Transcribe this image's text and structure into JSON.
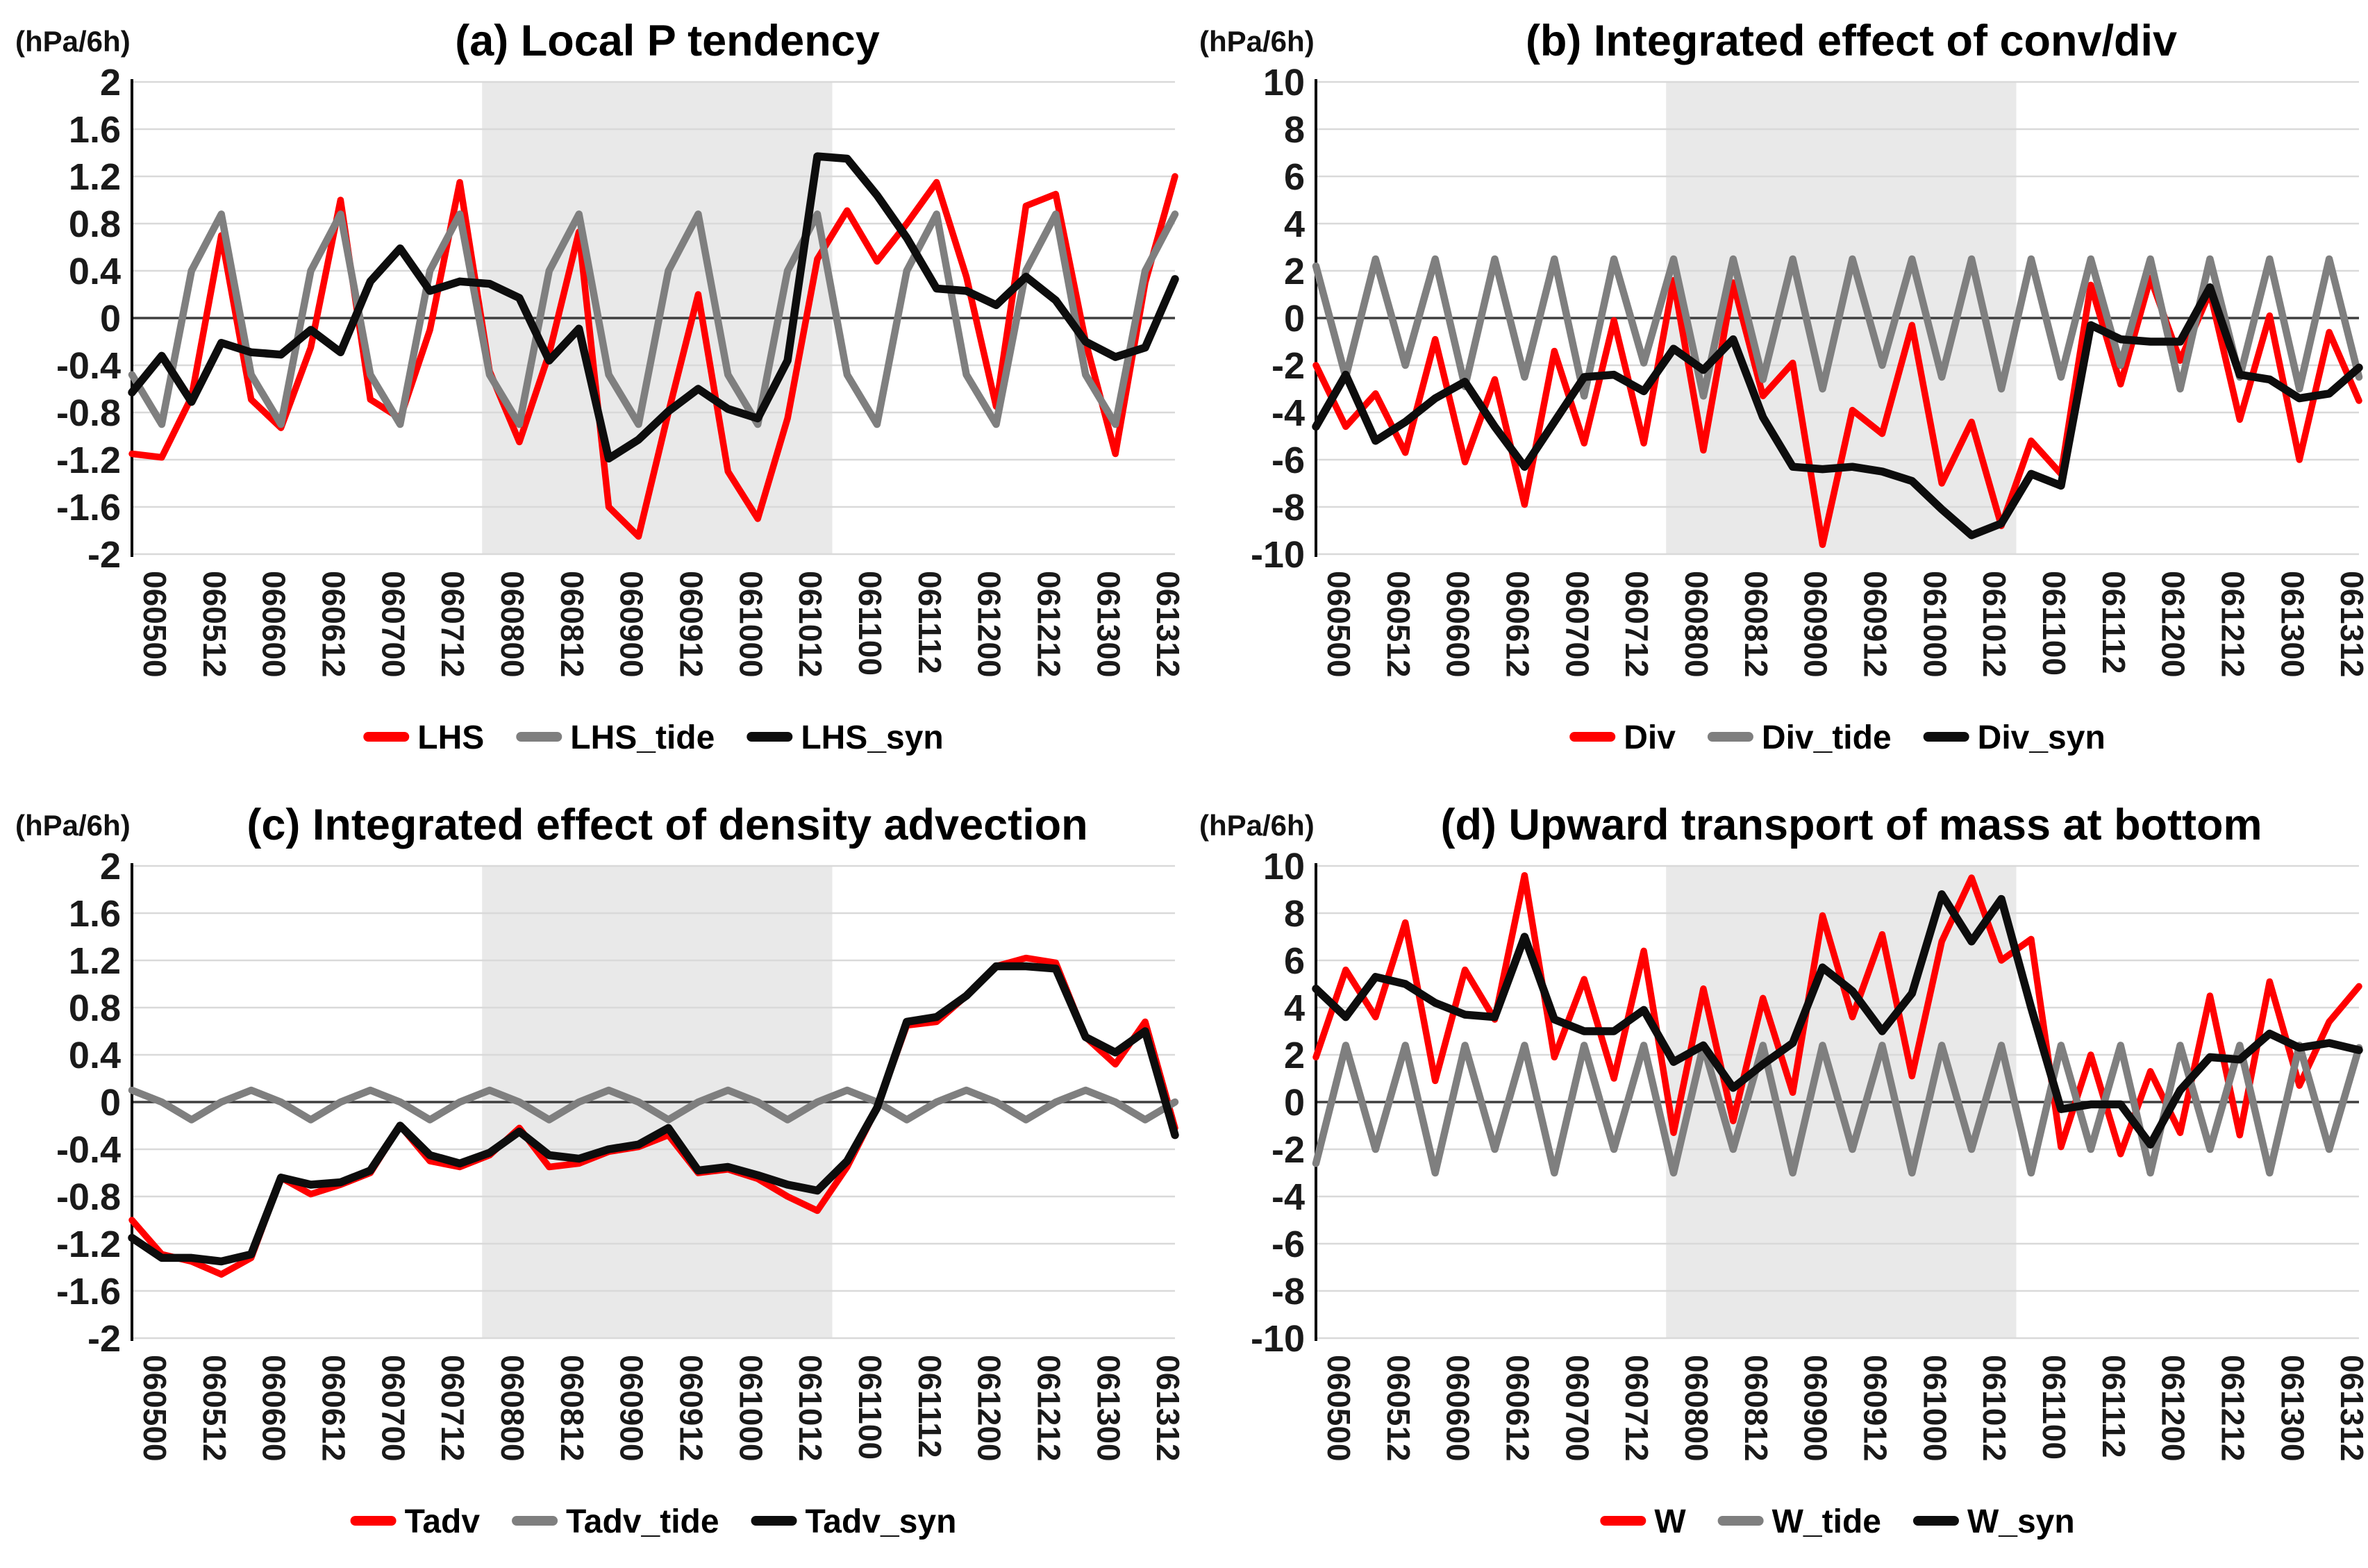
{
  "figure_title": "",
  "colors": {
    "red": "#ff0000",
    "gray": "#7f7f7f",
    "black": "#0d0d0d",
    "band": "#e9e9e9",
    "grid": "#d9d9d9",
    "zero_line": "#3f3f3f",
    "axis": "#000000",
    "text": "#1a1a1a"
  },
  "categories": [
    "060500",
    "060512",
    "060600",
    "060612",
    "060700",
    "060712",
    "060800",
    "060812",
    "060900",
    "060912",
    "061000",
    "061012",
    "061100",
    "061112",
    "061200",
    "061212",
    "061300",
    "061312"
  ],
  "points_per_label": 2,
  "shaded_band": {
    "start_label": "060800",
    "end_label": "061100",
    "start_index": 11.75,
    "end_index": 23.5
  },
  "chart_data": [
    {
      "id": "a",
      "type": "line",
      "title": "(a) Local P tendency",
      "unit_label": "(hPa/6h)",
      "ylim": [
        -2,
        2
      ],
      "ytick_labels": [
        "2",
        "1.6",
        "1.2",
        "0.8",
        "0.4",
        "0",
        "-0.4",
        "-0.8",
        "-1.2",
        "-1.6",
        "-2"
      ],
      "grid": true,
      "legend_position": "bottom",
      "series": [
        {
          "name": "LHS",
          "color_key": "red",
          "values": [
            -1.15,
            -1.18,
            -0.67,
            0.7,
            -0.69,
            -0.93,
            -0.25,
            1.0,
            -0.69,
            -0.85,
            -0.1,
            1.15,
            -0.45,
            -1.05,
            -0.3,
            0.73,
            -1.6,
            -1.85,
            -0.8,
            0.2,
            -1.3,
            -1.7,
            -0.85,
            0.5,
            0.91,
            0.48,
            0.8,
            1.15,
            0.35,
            -0.75,
            0.95,
            1.05,
            -0.2,
            -1.15,
            0.3,
            1.2
          ]
        },
        {
          "name": "LHS_tide",
          "color_key": "gray",
          "values": [
            -0.48,
            -0.9,
            0.4,
            0.88,
            -0.48,
            -0.9,
            0.4,
            0.88,
            -0.48,
            -0.9,
            0.4,
            0.88,
            -0.48,
            -0.9,
            0.4,
            0.88,
            -0.48,
            -0.9,
            0.4,
            0.88,
            -0.48,
            -0.9,
            0.4,
            0.88,
            -0.48,
            -0.9,
            0.4,
            0.88,
            -0.48,
            -0.9,
            0.4,
            0.88,
            -0.48,
            -0.9,
            0.4,
            0.88
          ]
        },
        {
          "name": "LHS_syn",
          "color_key": "black",
          "values": [
            -0.63,
            -0.32,
            -0.71,
            -0.21,
            -0.29,
            -0.31,
            -0.1,
            -0.29,
            0.31,
            0.59,
            0.23,
            0.31,
            0.29,
            0.17,
            -0.36,
            -0.09,
            -1.19,
            -1.03,
            -0.79,
            -0.6,
            -0.77,
            -0.85,
            -0.36,
            1.37,
            1.35,
            1.04,
            0.68,
            0.25,
            0.23,
            0.11,
            0.35,
            0.15,
            -0.2,
            -0.33,
            -0.25,
            0.33
          ]
        }
      ]
    },
    {
      "id": "b",
      "type": "line",
      "title": "(b) Integrated effect of conv/div",
      "unit_label": "(hPa/6h)",
      "ylim": [
        -10,
        10
      ],
      "ytick_labels": [
        "10",
        "8",
        "6",
        "4",
        "2",
        "0",
        "-2",
        "-4",
        "-6",
        "-8",
        "-10"
      ],
      "grid": true,
      "legend_position": "bottom",
      "series": [
        {
          "name": "Div",
          "color_key": "red",
          "values": [
            -2.0,
            -4.6,
            -3.2,
            -5.7,
            -0.9,
            -6.1,
            -2.6,
            -7.9,
            -1.4,
            -5.3,
            -0.1,
            -5.3,
            1.6,
            -5.6,
            1.5,
            -3.3,
            -1.9,
            -9.6,
            -3.9,
            -4.9,
            -0.3,
            -7.0,
            -4.4,
            -8.8,
            -5.2,
            -6.6,
            1.4,
            -2.8,
            1.7,
            -1.8,
            1.1,
            -4.3,
            0.1,
            -6.0,
            -0.6,
            -3.5
          ]
        },
        {
          "name": "Div_tide",
          "color_key": "gray",
          "values": [
            2.2,
            -2.5,
            2.5,
            -2.0,
            2.5,
            -2.9,
            2.5,
            -2.5,
            2.5,
            -3.3,
            2.5,
            -1.9,
            2.5,
            -3.3,
            2.5,
            -2.6,
            2.5,
            -3.0,
            2.5,
            -2.0,
            2.5,
            -2.5,
            2.5,
            -3.0,
            2.5,
            -2.5,
            2.5,
            -2.0,
            2.5,
            -3.0,
            2.5,
            -2.5,
            2.5,
            -3.0,
            2.5,
            -2.5
          ]
        },
        {
          "name": "Div_syn",
          "color_key": "black",
          "values": [
            -4.6,
            -2.4,
            -5.2,
            -4.4,
            -3.4,
            -2.7,
            -4.6,
            -6.3,
            -4.4,
            -2.5,
            -2.4,
            -3.1,
            -1.3,
            -2.2,
            -0.9,
            -4.2,
            -6.3,
            -6.4,
            -6.3,
            -6.5,
            -6.9,
            -8.1,
            -9.2,
            -8.7,
            -6.6,
            -7.1,
            -0.3,
            -0.9,
            -1.0,
            -1.0,
            1.3,
            -2.4,
            -2.6,
            -3.4,
            -3.2,
            -2.1
          ]
        }
      ]
    },
    {
      "id": "c",
      "type": "line",
      "title": "(c) Integrated effect of density advection",
      "unit_label": "(hPa/6h)",
      "ylim": [
        -2,
        2
      ],
      "ytick_labels": [
        "2",
        "1.6",
        "1.2",
        "0.8",
        "0.4",
        "0",
        "-0.4",
        "-0.8",
        "-1.2",
        "-1.6",
        "-2"
      ],
      "grid": true,
      "legend_position": "bottom",
      "series": [
        {
          "name": "Tadv",
          "color_key": "red",
          "values": [
            -1.0,
            -1.29,
            -1.35,
            -1.46,
            -1.32,
            -0.64,
            -0.78,
            -0.7,
            -0.6,
            -0.2,
            -0.5,
            -0.55,
            -0.45,
            -0.22,
            -0.55,
            -0.52,
            -0.42,
            -0.38,
            -0.28,
            -0.6,
            -0.57,
            -0.65,
            -0.8,
            -0.92,
            -0.55,
            -0.05,
            0.65,
            0.68,
            0.9,
            1.15,
            1.22,
            1.18,
            0.55,
            0.32,
            0.68,
            -0.22
          ]
        },
        {
          "name": "Tadv_tide",
          "color_key": "gray",
          "values": [
            0.1,
            0,
            -0.15,
            0,
            0.1,
            0,
            -0.15,
            0,
            0.1,
            0,
            -0.15,
            0,
            0.1,
            0,
            -0.15,
            0,
            0.1,
            0,
            -0.15,
            0,
            0.1,
            0,
            -0.15,
            0,
            0.1,
            0,
            -0.15,
            0,
            0.1,
            0,
            -0.15,
            0,
            0.1,
            0,
            -0.15,
            0
          ]
        },
        {
          "name": "Tadv_syn",
          "color_key": "black",
          "values": [
            -1.15,
            -1.32,
            -1.32,
            -1.35,
            -1.29,
            -0.64,
            -0.7,
            -0.68,
            -0.58,
            -0.2,
            -0.45,
            -0.52,
            -0.43,
            -0.25,
            -0.45,
            -0.48,
            -0.4,
            -0.36,
            -0.22,
            -0.58,
            -0.55,
            -0.62,
            -0.7,
            -0.75,
            -0.5,
            -0.05,
            0.68,
            0.72,
            0.9,
            1.15,
            1.15,
            1.13,
            0.55,
            0.42,
            0.6,
            -0.28
          ]
        }
      ]
    },
    {
      "id": "d",
      "type": "line",
      "title": "(d) Upward transport of mass at bottom",
      "unit_label": "(hPa/6h)",
      "ylim": [
        -10,
        10
      ],
      "ytick_labels": [
        "10",
        "8",
        "6",
        "4",
        "2",
        "0",
        "-2",
        "-4",
        "-6",
        "-8",
        "-10"
      ],
      "grid": true,
      "legend_position": "bottom",
      "series": [
        {
          "name": "W",
          "color_key": "red",
          "values": [
            1.9,
            5.6,
            3.6,
            7.6,
            0.9,
            5.6,
            3.5,
            9.6,
            1.9,
            5.2,
            1.0,
            6.4,
            -1.3,
            4.8,
            -0.8,
            4.4,
            0.4,
            7.9,
            3.6,
            7.1,
            1.1,
            6.8,
            9.5,
            6.0,
            6.9,
            -1.9,
            2.0,
            -2.2,
            1.3,
            -1.3,
            4.5,
            -1.4,
            5.1,
            0.7,
            3.4,
            4.9
          ]
        },
        {
          "name": "W_tide",
          "color_key": "gray",
          "values": [
            -2.6,
            2.4,
            -2.0,
            2.4,
            -3.0,
            2.4,
            -2.0,
            2.4,
            -3.0,
            2.4,
            -2.0,
            2.4,
            -3.0,
            2.4,
            -2.0,
            2.4,
            -3.0,
            2.4,
            -2.0,
            2.4,
            -3.0,
            2.4,
            -2.0,
            2.4,
            -3.0,
            2.4,
            -2.0,
            2.4,
            -3.0,
            2.4,
            -2.0,
            2.4,
            -3.0,
            2.4,
            -2.0,
            2.3
          ]
        },
        {
          "name": "W_syn",
          "color_key": "black",
          "values": [
            4.8,
            3.6,
            5.3,
            5.0,
            4.2,
            3.7,
            3.6,
            7.0,
            3.5,
            3.0,
            3.0,
            3.9,
            1.7,
            2.4,
            0.6,
            1.6,
            2.5,
            5.7,
            4.7,
            3.0,
            4.6,
            8.8,
            6.8,
            8.6,
            4.0,
            -0.3,
            -0.1,
            -0.1,
            -1.8,
            0.5,
            1.9,
            1.8,
            2.9,
            2.3,
            2.5,
            2.2
          ]
        }
      ]
    }
  ]
}
